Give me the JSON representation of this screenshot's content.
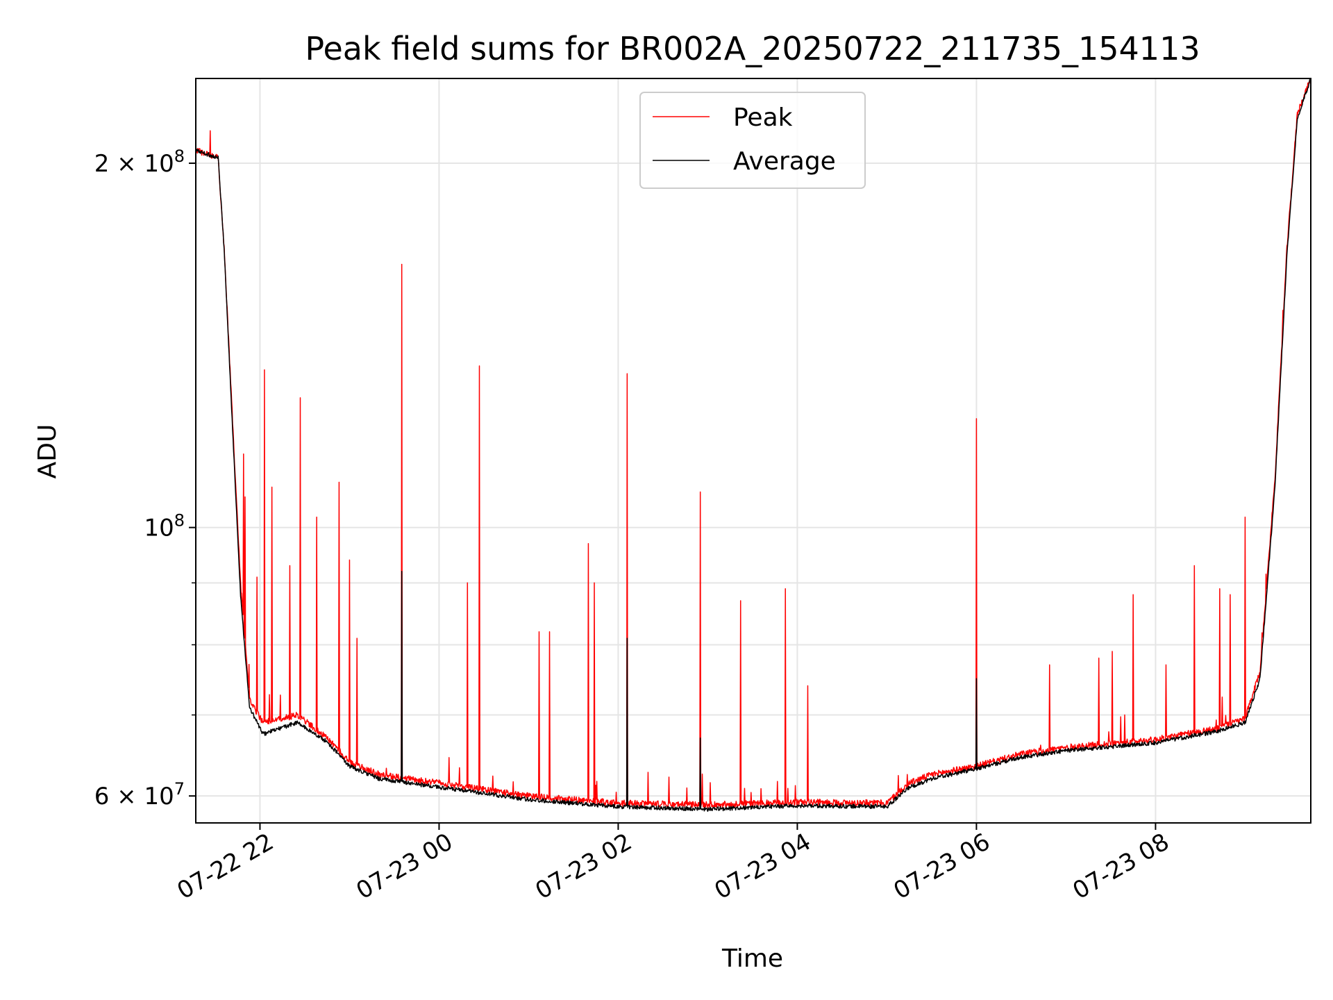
{
  "chart_data": {
    "type": "line",
    "title": "Peak field sums for BR002A_20250722_211735_154113",
    "xlabel": "Time",
    "ylabel": "ADU",
    "yscale": "log",
    "ylim": [
      57000000,
      235000000
    ],
    "xlim": [
      "2025-07-22T21:17",
      "2025-07-23T09:44"
    ],
    "grid": true,
    "legend_position": "top-center",
    "x_ticks": [
      {
        "t": "2025-07-22T22:00",
        "label": "07-22 22"
      },
      {
        "t": "2025-07-23T00:00",
        "label": "07-23 00"
      },
      {
        "t": "2025-07-23T02:00",
        "label": "07-23 02"
      },
      {
        "t": "2025-07-23T04:00",
        "label": "07-23 04"
      },
      {
        "t": "2025-07-23T06:00",
        "label": "07-23 06"
      },
      {
        "t": "2025-07-23T08:00",
        "label": "07-23 08"
      }
    ],
    "y_ticks": [
      {
        "value": 200000000,
        "base": "2",
        "exp": "8"
      },
      {
        "value": 100000000,
        "base": "",
        "exp": "8"
      },
      {
        "value": 60000000,
        "base": "6",
        "exp": "7"
      }
    ],
    "y_minor_gridlines": [
      70000000,
      80000000,
      90000000
    ],
    "series": [
      {
        "name": "Peak",
        "color": "#ff0000",
        "baseline": [
          {
            "t": "2025-07-22T21:17",
            "v": 205000000
          },
          {
            "t": "2025-07-22T21:32",
            "v": 202000000
          },
          {
            "t": "2025-07-22T21:36",
            "v": 170000000
          },
          {
            "t": "2025-07-22T21:42",
            "v": 120000000
          },
          {
            "t": "2025-07-22T21:47",
            "v": 90000000
          },
          {
            "t": "2025-07-22T21:53",
            "v": 72000000
          },
          {
            "t": "2025-07-22T22:02",
            "v": 69000000
          },
          {
            "t": "2025-07-22T22:25",
            "v": 70000000
          },
          {
            "t": "2025-07-22T22:45",
            "v": 67000000
          },
          {
            "t": "2025-07-22T23:00",
            "v": 64000000
          },
          {
            "t": "2025-07-22T23:20",
            "v": 62500000
          },
          {
            "t": "2025-07-23T00:00",
            "v": 61500000
          },
          {
            "t": "2025-07-23T01:00",
            "v": 60000000
          },
          {
            "t": "2025-07-23T02:00",
            "v": 59200000
          },
          {
            "t": "2025-07-23T03:00",
            "v": 59000000
          },
          {
            "t": "2025-07-23T04:00",
            "v": 59300000
          },
          {
            "t": "2025-07-23T05:00",
            "v": 59200000
          },
          {
            "t": "2025-07-23T05:15",
            "v": 61500000
          },
          {
            "t": "2025-07-23T05:30",
            "v": 62500000
          },
          {
            "t": "2025-07-23T06:00",
            "v": 63500000
          },
          {
            "t": "2025-07-23T06:30",
            "v": 65000000
          },
          {
            "t": "2025-07-23T07:00",
            "v": 65800000
          },
          {
            "t": "2025-07-23T08:00",
            "v": 66800000
          },
          {
            "t": "2025-07-23T08:40",
            "v": 68200000
          },
          {
            "t": "2025-07-23T09:00",
            "v": 69500000
          },
          {
            "t": "2025-07-23T09:10",
            "v": 76000000
          },
          {
            "t": "2025-07-23T09:20",
            "v": 110000000
          },
          {
            "t": "2025-07-23T09:28",
            "v": 170000000
          },
          {
            "t": "2025-07-23T09:35",
            "v": 220000000
          },
          {
            "t": "2025-07-23T09:44",
            "v": 235000000
          }
        ],
        "spikes": [
          {
            "t": "2025-07-22T21:49",
            "v": 115000000
          },
          {
            "t": "2025-07-22T21:50",
            "v": 106000000
          },
          {
            "t": "2025-07-22T21:58",
            "v": 91000000
          },
          {
            "t": "2025-07-22T22:03",
            "v": 135000000
          },
          {
            "t": "2025-07-22T22:08",
            "v": 108000000
          },
          {
            "t": "2025-07-22T22:20",
            "v": 93000000
          },
          {
            "t": "2025-07-22T22:27",
            "v": 128000000
          },
          {
            "t": "2025-07-22T22:38",
            "v": 102000000
          },
          {
            "t": "2025-07-22T22:53",
            "v": 109000000
          },
          {
            "t": "2025-07-22T23:00",
            "v": 94000000
          },
          {
            "t": "2025-07-22T23:05",
            "v": 81000000
          },
          {
            "t": "2025-07-22T23:35",
            "v": 165000000
          },
          {
            "t": "2025-07-23T00:19",
            "v": 90000000
          },
          {
            "t": "2025-07-23T00:27",
            "v": 136000000
          },
          {
            "t": "2025-07-23T01:07",
            "v": 82000000
          },
          {
            "t": "2025-07-23T01:14",
            "v": 82000000
          },
          {
            "t": "2025-07-23T01:40",
            "v": 97000000
          },
          {
            "t": "2025-07-23T01:44",
            "v": 90000000
          },
          {
            "t": "2025-07-23T02:06",
            "v": 134000000
          },
          {
            "t": "2025-07-23T02:55",
            "v": 107000000
          },
          {
            "t": "2025-07-23T03:22",
            "v": 87000000
          },
          {
            "t": "2025-07-23T03:52",
            "v": 89000000
          },
          {
            "t": "2025-07-23T04:07",
            "v": 74000000
          },
          {
            "t": "2025-07-23T06:00",
            "v": 123000000
          },
          {
            "t": "2025-07-23T06:49",
            "v": 77000000
          },
          {
            "t": "2025-07-23T07:22",
            "v": 78000000
          },
          {
            "t": "2025-07-23T07:31",
            "v": 79000000
          },
          {
            "t": "2025-07-23T07:45",
            "v": 88000000
          },
          {
            "t": "2025-07-23T08:07",
            "v": 77000000
          },
          {
            "t": "2025-07-23T08:26",
            "v": 93000000
          },
          {
            "t": "2025-07-23T08:43",
            "v": 89000000
          },
          {
            "t": "2025-07-23T08:50",
            "v": 88000000
          },
          {
            "t": "2025-07-23T09:00",
            "v": 102000000
          },
          {
            "t": "2025-07-23T09:25",
            "v": 146000000
          }
        ]
      },
      {
        "name": "Average",
        "color": "#000000",
        "baseline": [
          {
            "t": "2025-07-22T21:17",
            "v": 205000000
          },
          {
            "t": "2025-07-22T21:32",
            "v": 202000000
          },
          {
            "t": "2025-07-22T21:36",
            "v": 170000000
          },
          {
            "t": "2025-07-22T21:42",
            "v": 118000000
          },
          {
            "t": "2025-07-22T21:47",
            "v": 88000000
          },
          {
            "t": "2025-07-22T21:53",
            "v": 71000000
          },
          {
            "t": "2025-07-22T22:02",
            "v": 67500000
          },
          {
            "t": "2025-07-22T22:25",
            "v": 69000000
          },
          {
            "t": "2025-07-22T22:45",
            "v": 66500000
          },
          {
            "t": "2025-07-22T23:00",
            "v": 63500000
          },
          {
            "t": "2025-07-22T23:20",
            "v": 62000000
          },
          {
            "t": "2025-07-23T00:00",
            "v": 61000000
          },
          {
            "t": "2025-07-23T01:00",
            "v": 59600000
          },
          {
            "t": "2025-07-23T02:00",
            "v": 58800000
          },
          {
            "t": "2025-07-23T03:00",
            "v": 58500000
          },
          {
            "t": "2025-07-23T04:00",
            "v": 58900000
          },
          {
            "t": "2025-07-23T05:00",
            "v": 58800000
          },
          {
            "t": "2025-07-23T05:15",
            "v": 61000000
          },
          {
            "t": "2025-07-23T05:30",
            "v": 62000000
          },
          {
            "t": "2025-07-23T06:00",
            "v": 63200000
          },
          {
            "t": "2025-07-23T06:30",
            "v": 64600000
          },
          {
            "t": "2025-07-23T07:00",
            "v": 65400000
          },
          {
            "t": "2025-07-23T08:00",
            "v": 66400000
          },
          {
            "t": "2025-07-23T08:40",
            "v": 67800000
          },
          {
            "t": "2025-07-23T09:00",
            "v": 69000000
          },
          {
            "t": "2025-07-23T09:10",
            "v": 75000000
          },
          {
            "t": "2025-07-23T09:20",
            "v": 108000000
          },
          {
            "t": "2025-07-23T09:28",
            "v": 168000000
          },
          {
            "t": "2025-07-23T09:35",
            "v": 218000000
          },
          {
            "t": "2025-07-23T09:44",
            "v": 235000000
          }
        ],
        "spikes": [
          {
            "t": "2025-07-22T23:35",
            "v": 92000000
          },
          {
            "t": "2025-07-23T02:06",
            "v": 81000000
          },
          {
            "t": "2025-07-23T06:00",
            "v": 75000000
          },
          {
            "t": "2025-07-23T02:55",
            "v": 67000000
          }
        ]
      }
    ]
  }
}
